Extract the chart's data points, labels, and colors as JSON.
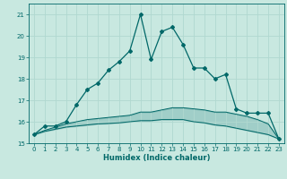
{
  "xlabel": "Humidex (Indice chaleur)",
  "background_color": "#c8e8e0",
  "grid_color": "#b0d8d0",
  "line_color": "#006868",
  "xlim": [
    -0.5,
    23.5
  ],
  "ylim": [
    15,
    21.5
  ],
  "yticks": [
    15,
    16,
    17,
    18,
    19,
    20,
    21
  ],
  "xticks": [
    0,
    1,
    2,
    3,
    4,
    5,
    6,
    7,
    8,
    9,
    10,
    11,
    12,
    13,
    14,
    15,
    16,
    17,
    18,
    19,
    20,
    21,
    22,
    23
  ],
  "line1_x": [
    0,
    1,
    2,
    3,
    4,
    5,
    6,
    7,
    8,
    9,
    10,
    11,
    12,
    13,
    14,
    15,
    16,
    17,
    18,
    19,
    20,
    21,
    22,
    23
  ],
  "line1_y": [
    15.4,
    15.8,
    15.8,
    16.0,
    16.8,
    17.5,
    17.8,
    18.4,
    18.8,
    19.3,
    21.0,
    18.9,
    20.2,
    20.4,
    19.6,
    18.5,
    18.5,
    18.0,
    18.2,
    16.6,
    16.4,
    16.4,
    16.4,
    15.2
  ],
  "line2_x": [
    0,
    1,
    2,
    3,
    4,
    5,
    6,
    7,
    8,
    9,
    10,
    11,
    12,
    13,
    14,
    15,
    16,
    17,
    18,
    19,
    20,
    21,
    22,
    23
  ],
  "line2_y": [
    15.4,
    15.55,
    15.65,
    15.75,
    15.8,
    15.85,
    15.9,
    15.92,
    15.95,
    16.0,
    16.05,
    16.05,
    16.1,
    16.1,
    16.1,
    16.0,
    15.95,
    15.85,
    15.8,
    15.7,
    15.6,
    15.5,
    15.4,
    15.2
  ],
  "line3_x": [
    0,
    1,
    2,
    3,
    4,
    5,
    6,
    7,
    8,
    9,
    10,
    11,
    12,
    13,
    14,
    15,
    16,
    17,
    18,
    19,
    20,
    21,
    22,
    23
  ],
  "line3_y": [
    15.4,
    15.6,
    15.75,
    15.9,
    16.0,
    16.1,
    16.15,
    16.2,
    16.25,
    16.3,
    16.45,
    16.45,
    16.55,
    16.65,
    16.65,
    16.6,
    16.55,
    16.45,
    16.45,
    16.35,
    16.25,
    16.1,
    15.9,
    15.2
  ]
}
